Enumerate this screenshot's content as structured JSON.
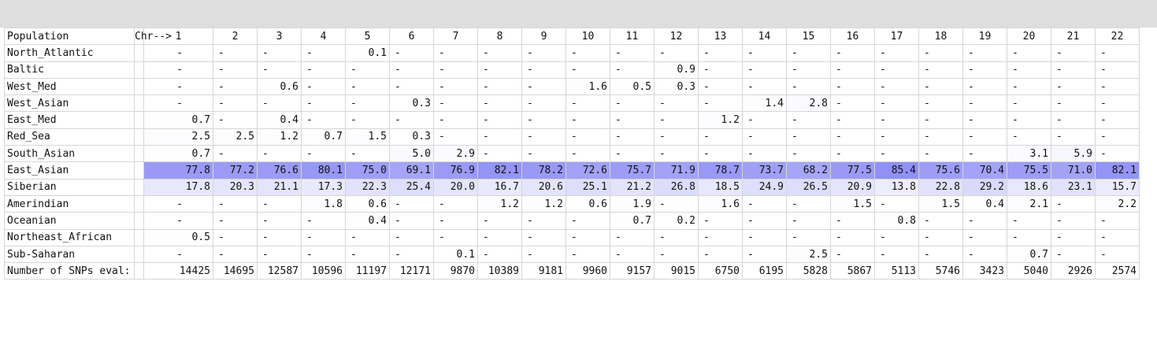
{
  "table": {
    "header": [
      "Population",
      "Chr-->",
      "1",
      "2",
      "3",
      "4",
      "5",
      "6",
      "7",
      "8",
      "9",
      "10",
      "11",
      "12",
      "13",
      "14",
      "15",
      "16",
      "17",
      "18",
      "19",
      "20",
      "21",
      "22"
    ],
    "rows": [
      [
        "North_Atlantic",
        "-",
        "-",
        "-",
        "-",
        "0.1",
        "-",
        "-",
        "-",
        "-",
        "-",
        "-",
        "-",
        "-",
        "-",
        "-",
        "-",
        "-",
        "-",
        "-",
        "-",
        "-",
        "-"
      ],
      [
        "Baltic",
        "-",
        "-",
        "-",
        "-",
        "-",
        "-",
        "-",
        "-",
        "-",
        "-",
        "-",
        "0.9",
        "-",
        "-",
        "-",
        "-",
        "-",
        "-",
        "-",
        "-",
        "-",
        "-"
      ],
      [
        "West_Med",
        "-",
        "-",
        "0.6",
        "-",
        "-",
        "-",
        "-",
        "-",
        "-",
        "1.6",
        "0.5",
        "0.3",
        "-",
        "-",
        "-",
        "-",
        "-",
        "-",
        "-",
        "-",
        "-",
        "-"
      ],
      [
        "West_Asian",
        "-",
        "-",
        "-",
        "-",
        "-",
        "0.3",
        "-",
        "-",
        "-",
        "-",
        "-",
        "-",
        "-",
        "1.4",
        "2.8",
        "-",
        "-",
        "-",
        "-",
        "-",
        "-",
        "-"
      ],
      [
        "East_Med",
        "0.7",
        "-",
        "0.4",
        "-",
        "-",
        "-",
        "-",
        "-",
        "-",
        "-",
        "-",
        "-",
        "1.2",
        "-",
        "-",
        "-",
        "-",
        "-",
        "-",
        "-",
        "-",
        "-"
      ],
      [
        "Red_Sea",
        "2.5",
        "2.5",
        "1.2",
        "0.7",
        "1.5",
        "0.3",
        "-",
        "-",
        "-",
        "-",
        "-",
        "-",
        "-",
        "-",
        "-",
        "-",
        "-",
        "-",
        "-",
        "-",
        "-",
        "-"
      ],
      [
        "South_Asian",
        "0.7",
        "-",
        "-",
        "-",
        "-",
        "5.0",
        "2.9",
        "-",
        "-",
        "-",
        "-",
        "-",
        "-",
        "-",
        "-",
        "-",
        "-",
        "-",
        "-",
        "3.1",
        "5.9",
        "-"
      ],
      [
        "East_Asian",
        "77.8",
        "77.2",
        "76.6",
        "80.1",
        "75.0",
        "69.1",
        "76.9",
        "82.1",
        "78.2",
        "72.6",
        "75.7",
        "71.9",
        "78.7",
        "73.7",
        "68.2",
        "77.5",
        "85.4",
        "75.6",
        "70.4",
        "75.5",
        "71.0",
        "82.1"
      ],
      [
        "Siberian",
        "17.8",
        "20.3",
        "21.1",
        "17.3",
        "22.3",
        "25.4",
        "20.0",
        "16.7",
        "20.6",
        "25.1",
        "21.2",
        "26.8",
        "18.5",
        "24.9",
        "26.5",
        "20.9",
        "13.8",
        "22.8",
        "29.2",
        "18.6",
        "23.1",
        "15.7"
      ],
      [
        "Amerindian",
        "-",
        "-",
        "-",
        "1.8",
        "0.6",
        "-",
        "-",
        "1.2",
        "1.2",
        "0.6",
        "1.9",
        "-",
        "1.6",
        "-",
        "-",
        "1.5",
        "-",
        "1.5",
        "0.4",
        "2.1",
        "-",
        "2.2"
      ],
      [
        "Oceanian",
        "-",
        "-",
        "-",
        "-",
        "0.4",
        "-",
        "-",
        "-",
        "-",
        "-",
        "0.7",
        "0.2",
        "-",
        "-",
        "-",
        "-",
        "0.8",
        "-",
        "-",
        "-",
        "-",
        "-"
      ],
      [
        "Northeast_African",
        "0.5",
        "-",
        "-",
        "-",
        "-",
        "-",
        "-",
        "-",
        "-",
        "-",
        "-",
        "-",
        "-",
        "-",
        "-",
        "-",
        "-",
        "-",
        "-",
        "-",
        "-",
        "-"
      ],
      [
        "Sub-Saharan",
        "-",
        "-",
        "-",
        "-",
        "-",
        "-",
        "0.1",
        "-",
        "-",
        "-",
        "-",
        "-",
        "-",
        "-",
        "2.5",
        "-",
        "-",
        "-",
        "-",
        "0.7",
        "-",
        "-"
      ],
      [
        "Number of SNPs eval:",
        "14425",
        "14695",
        "12587",
        "10596",
        "11197",
        "12171",
        "9870",
        "10389",
        "9181",
        "9960",
        "9157",
        "9015",
        "6750",
        "6195",
        "5828",
        "5867",
        "5113",
        "5746",
        "3423",
        "5040",
        "2926",
        "2574"
      ]
    ]
  }
}
